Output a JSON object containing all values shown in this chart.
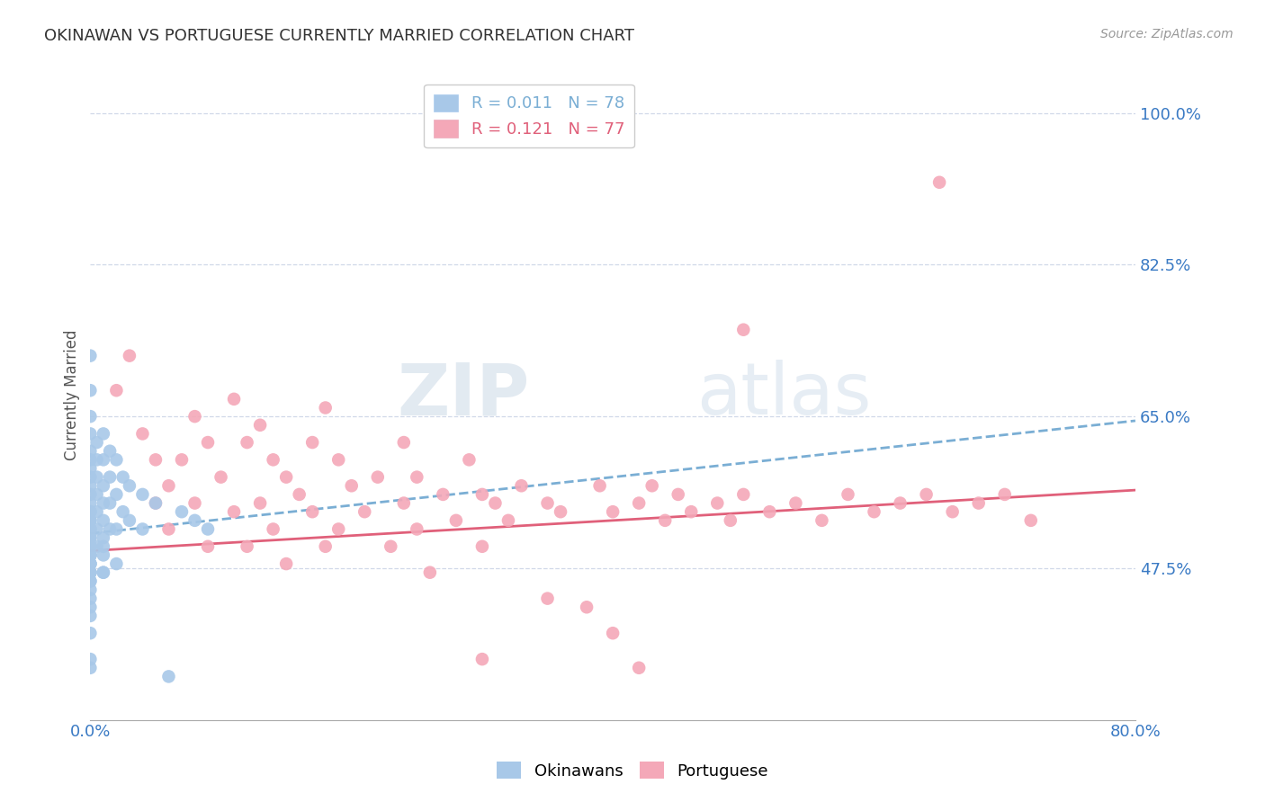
{
  "title": "OKINAWAN VS PORTUGUESE CURRENTLY MARRIED CORRELATION CHART",
  "source": "Source: ZipAtlas.com",
  "ylabel": "Currently Married",
  "yticks": [
    0.475,
    0.65,
    0.825,
    1.0
  ],
  "ytick_labels": [
    "47.5%",
    "65.0%",
    "82.5%",
    "100.0%"
  ],
  "xlim": [
    0.0,
    0.8
  ],
  "ylim": [
    0.3,
    1.05
  ],
  "okinawan_color": "#a8c8e8",
  "portuguese_color": "#f4a8b8",
  "okinawan_line_color": "#7aaed4",
  "portuguese_line_color": "#e0607a",
  "legend_r_okinawan": "R = 0.011",
  "legend_n_okinawan": "N = 78",
  "legend_r_portuguese": "R = 0.121",
  "legend_n_portuguese": "N = 77",
  "watermark_zip": "ZIP",
  "watermark_atlas": "atlas",
  "okinawan_x": [
    0.0,
    0.0,
    0.0,
    0.0,
    0.0,
    0.0,
    0.0,
    0.0,
    0.0,
    0.0,
    0.0,
    0.0,
    0.0,
    0.0,
    0.0,
    0.0,
    0.0,
    0.0,
    0.0,
    0.0,
    0.0,
    0.0,
    0.0,
    0.0,
    0.0,
    0.0,
    0.0,
    0.0,
    0.0,
    0.0,
    0.0,
    0.0,
    0.0,
    0.0,
    0.0,
    0.0,
    0.0,
    0.0,
    0.0,
    0.0,
    0.005,
    0.005,
    0.005,
    0.005,
    0.005,
    0.005,
    0.005,
    0.01,
    0.01,
    0.01,
    0.01,
    0.01,
    0.01,
    0.01,
    0.01,
    0.015,
    0.015,
    0.015,
    0.015,
    0.02,
    0.02,
    0.02,
    0.025,
    0.025,
    0.03,
    0.03,
    0.04,
    0.04,
    0.05,
    0.06,
    0.07,
    0.08,
    0.09,
    0.01,
    0.02,
    0.01,
    0.0,
    0.0
  ],
  "okinawan_y": [
    0.72,
    0.68,
    0.65,
    0.63,
    0.61,
    0.6,
    0.59,
    0.58,
    0.57,
    0.56,
    0.55,
    0.54,
    0.54,
    0.53,
    0.53,
    0.52,
    0.52,
    0.51,
    0.51,
    0.5,
    0.5,
    0.5,
    0.5,
    0.49,
    0.49,
    0.49,
    0.49,
    0.48,
    0.48,
    0.48,
    0.47,
    0.47,
    0.47,
    0.46,
    0.46,
    0.45,
    0.44,
    0.43,
    0.42,
    0.4,
    0.62,
    0.6,
    0.58,
    0.56,
    0.54,
    0.52,
    0.5,
    0.63,
    0.6,
    0.57,
    0.55,
    0.53,
    0.51,
    0.49,
    0.47,
    0.61,
    0.58,
    0.55,
    0.52,
    0.6,
    0.56,
    0.52,
    0.58,
    0.54,
    0.57,
    0.53,
    0.56,
    0.52,
    0.55,
    0.35,
    0.54,
    0.53,
    0.52,
    0.5,
    0.48,
    0.47,
    0.36,
    0.37
  ],
  "portuguese_x": [
    0.02,
    0.03,
    0.04,
    0.05,
    0.05,
    0.06,
    0.06,
    0.07,
    0.08,
    0.08,
    0.09,
    0.09,
    0.1,
    0.11,
    0.11,
    0.12,
    0.12,
    0.13,
    0.13,
    0.14,
    0.14,
    0.15,
    0.15,
    0.16,
    0.17,
    0.17,
    0.18,
    0.18,
    0.19,
    0.19,
    0.2,
    0.21,
    0.22,
    0.23,
    0.24,
    0.24,
    0.25,
    0.25,
    0.26,
    0.27,
    0.28,
    0.29,
    0.3,
    0.3,
    0.31,
    0.32,
    0.33,
    0.35,
    0.36,
    0.38,
    0.39,
    0.4,
    0.42,
    0.43,
    0.44,
    0.45,
    0.46,
    0.48,
    0.49,
    0.5,
    0.52,
    0.54,
    0.56,
    0.58,
    0.6,
    0.62,
    0.64,
    0.66,
    0.68,
    0.7,
    0.72,
    0.65,
    0.4,
    0.42,
    0.5,
    0.35,
    0.3
  ],
  "portuguese_y": [
    0.68,
    0.72,
    0.63,
    0.6,
    0.55,
    0.57,
    0.52,
    0.6,
    0.55,
    0.65,
    0.5,
    0.62,
    0.58,
    0.54,
    0.67,
    0.5,
    0.62,
    0.55,
    0.64,
    0.52,
    0.6,
    0.48,
    0.58,
    0.56,
    0.62,
    0.54,
    0.5,
    0.66,
    0.52,
    0.6,
    0.57,
    0.54,
    0.58,
    0.5,
    0.55,
    0.62,
    0.52,
    0.58,
    0.47,
    0.56,
    0.53,
    0.6,
    0.5,
    0.56,
    0.55,
    0.53,
    0.57,
    0.55,
    0.54,
    0.43,
    0.57,
    0.54,
    0.55,
    0.57,
    0.53,
    0.56,
    0.54,
    0.55,
    0.53,
    0.56,
    0.54,
    0.55,
    0.53,
    0.56,
    0.54,
    0.55,
    0.56,
    0.54,
    0.55,
    0.56,
    0.53,
    0.92,
    0.4,
    0.36,
    0.75,
    0.44,
    0.37
  ],
  "okin_trend_start": 0.515,
  "okin_trend_end": 0.645,
  "port_trend_start": 0.495,
  "port_trend_end": 0.565
}
